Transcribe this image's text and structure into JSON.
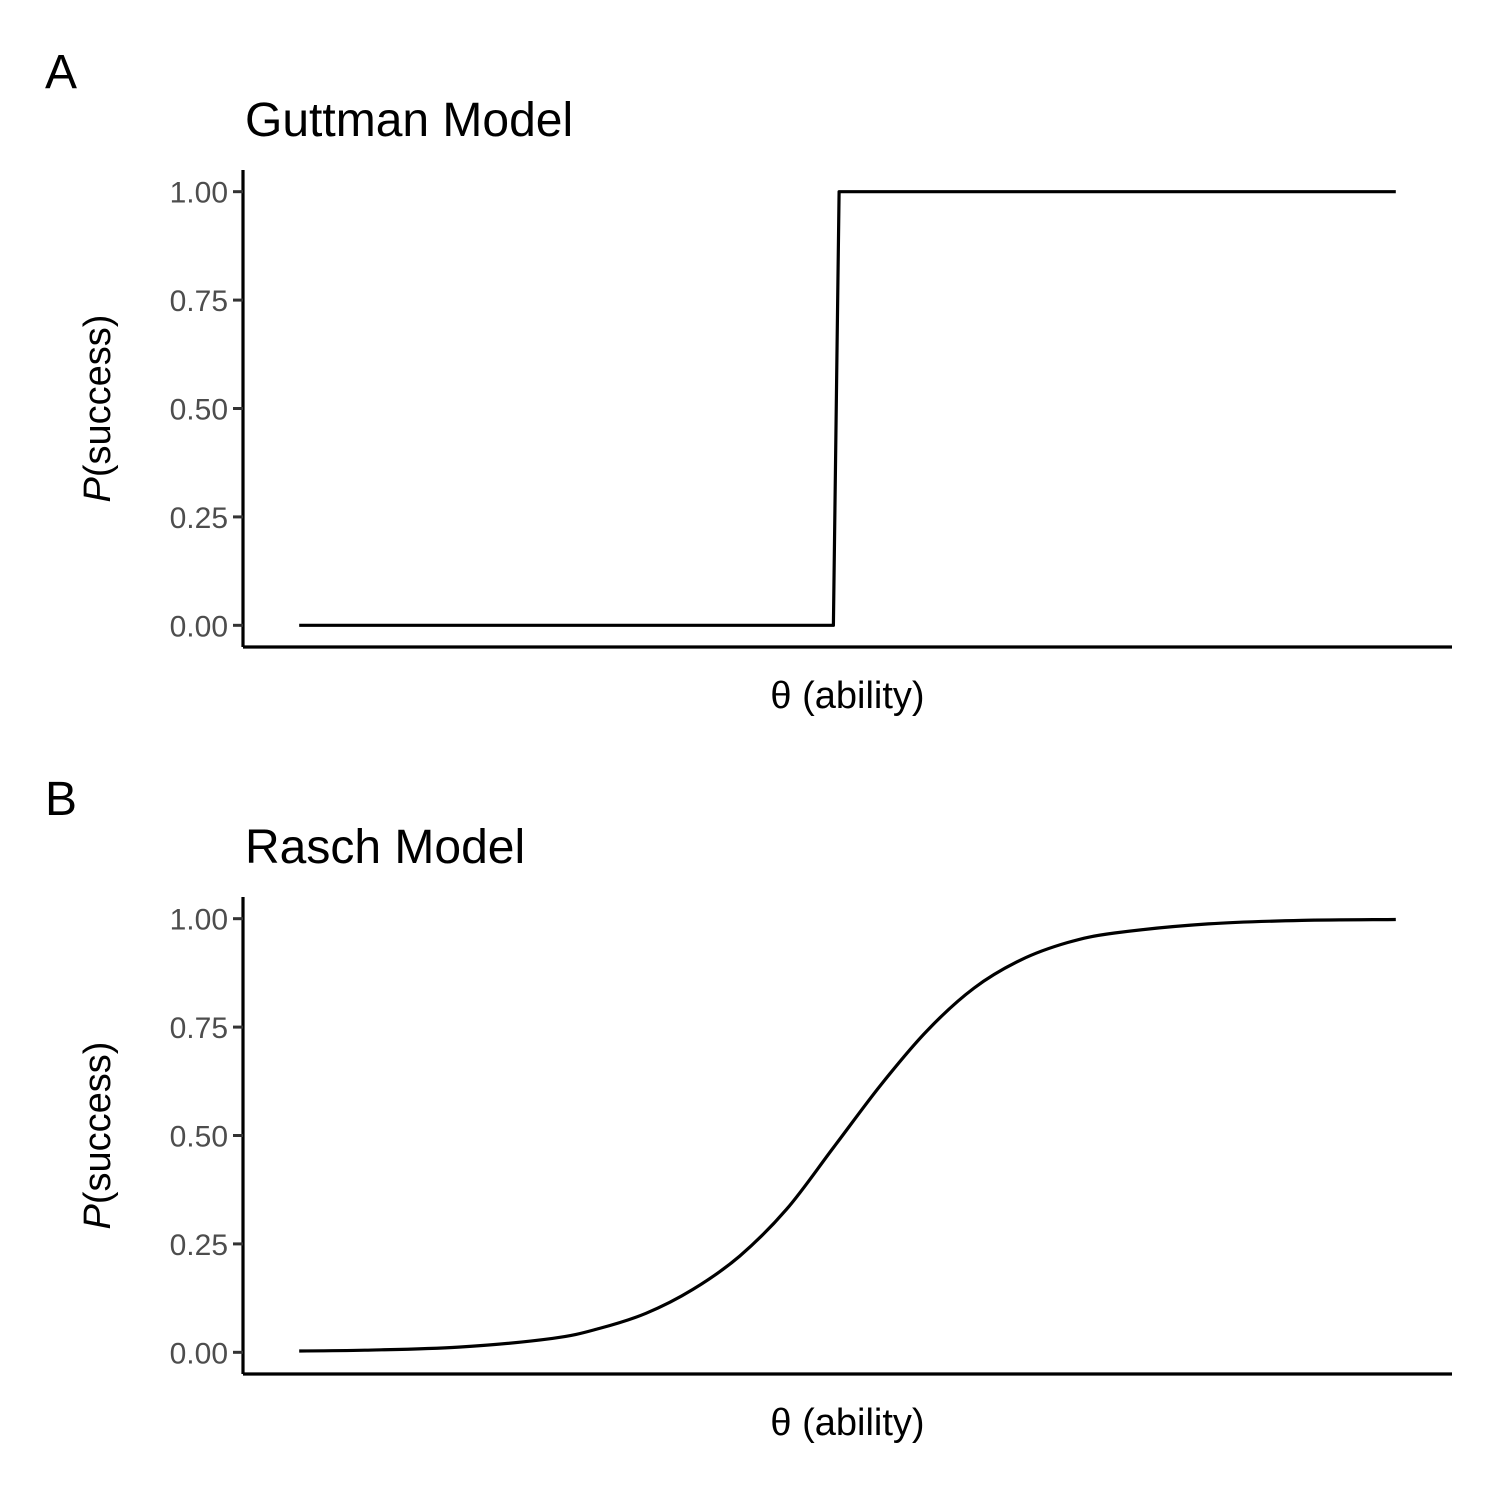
{
  "chart_data": [
    {
      "panel_tag": "A",
      "type": "line",
      "title": "Guttman Model",
      "xlabel": "θ (ability)",
      "ylabel": {
        "italic_part": "P",
        "rest": "(success)"
      },
      "ylim": [
        -0.05,
        1.05
      ],
      "xlim": [
        -3.15,
        3.3
      ],
      "yticks": [
        "0.00",
        "0.25",
        "0.50",
        "0.75",
        "1.00"
      ],
      "ytick_values": [
        0,
        0.25,
        0.5,
        0.75,
        1
      ],
      "x_ticks_shown": false,
      "grid": false,
      "series": [
        {
          "x": [
            -2.85,
            0.0,
            0.03,
            3.0
          ],
          "y": [
            0,
            0,
            1,
            1
          ]
        }
      ]
    },
    {
      "panel_tag": "B",
      "type": "line",
      "title": "Rasch Model",
      "xlabel": "θ (ability)",
      "ylabel": {
        "italic_part": "P",
        "rest": "(success)"
      },
      "ylim": [
        -0.05,
        1.05
      ],
      "xlim": [
        -3.15,
        3.3
      ],
      "yticks": [
        "0.00",
        "0.25",
        "0.50",
        "0.75",
        "1.00"
      ],
      "ytick_values": [
        0,
        0.25,
        0.5,
        0.75,
        1
      ],
      "x_ticks_shown": false,
      "grid": false,
      "series": [
        {
          "x": [
            -2.85,
            -2.5,
            -2.0,
            -1.5,
            -1.25,
            -1.0,
            -0.75,
            -0.5,
            -0.25,
            0.0,
            0.25,
            0.5,
            0.75,
            1.0,
            1.25,
            1.5,
            2.0,
            2.5,
            3.0
          ],
          "y": [
            0.003,
            0.005,
            0.012,
            0.032,
            0.055,
            0.09,
            0.145,
            0.222,
            0.33,
            0.472,
            0.615,
            0.742,
            0.84,
            0.905,
            0.945,
            0.967,
            0.988,
            0.996,
            0.998
          ]
        }
      ]
    }
  ]
}
